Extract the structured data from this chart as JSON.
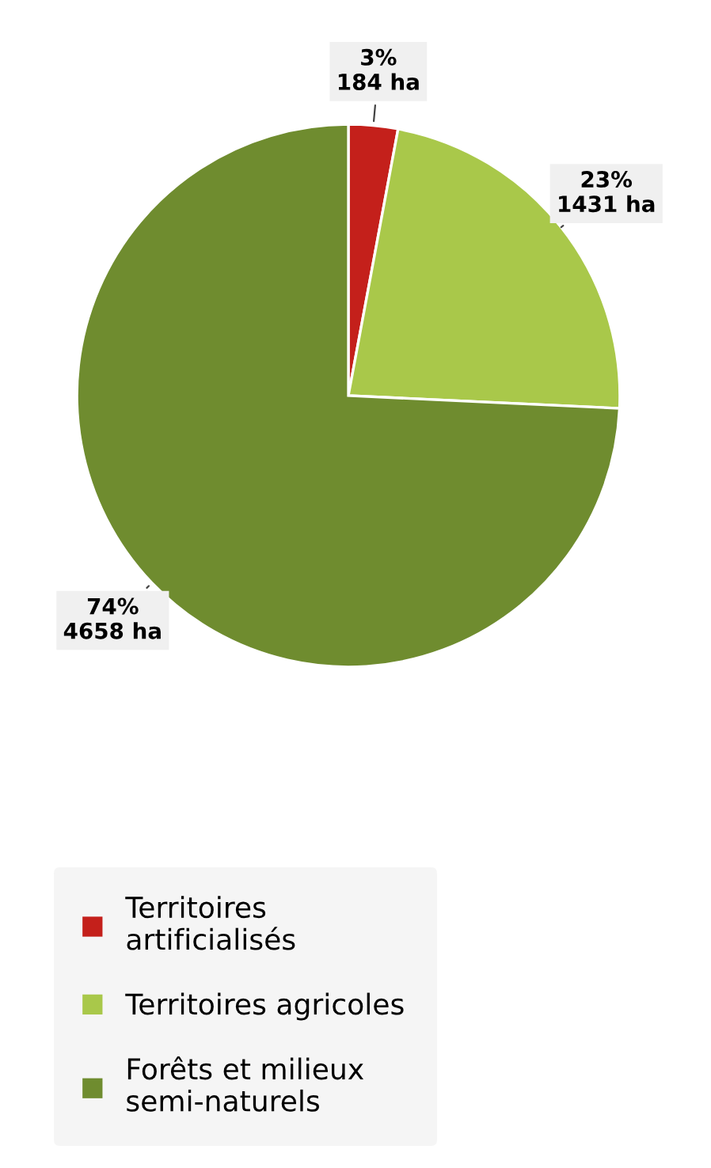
{
  "chart_data": {
    "type": "pie",
    "categories": [
      "Territoires\nartificialisés",
      "Territoires agricoles",
      "Forêts et milieux\nsemi-naturels"
    ],
    "values": [
      184,
      1431,
      4658
    ],
    "colors": [
      "#c4201b",
      "#a9c84a",
      "#6f8c2f"
    ],
    "value_labels": [
      "3%\n184 ha",
      "23%\n1431 ha",
      "74%\n4658 ha"
    ],
    "legend": "bottom"
  }
}
